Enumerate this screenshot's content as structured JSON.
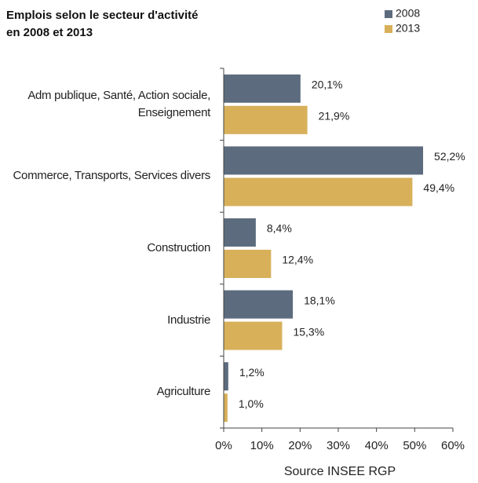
{
  "chart_data": {
    "type": "bar",
    "orientation": "horizontal",
    "title": [
      "Emplois selon le secteur d'activité",
      "en 2008 et 2013"
    ],
    "categories": [
      "Adm publique, Santé, Action sociale, Enseignement",
      "Commerce, Transports, Services divers",
      "Construction",
      "Industrie",
      "Agriculture"
    ],
    "series": [
      {
        "name": "2008",
        "color": "#5d6b7e",
        "values": [
          20.1,
          52.2,
          8.4,
          18.1,
          1.2
        ],
        "value_labels": [
          "20,1%",
          "52,2%",
          "8,4%",
          "18,1%",
          "1,2%"
        ]
      },
      {
        "name": "2013",
        "color": "#d8b05a",
        "values": [
          21.9,
          49.4,
          12.4,
          15.3,
          1.0
        ],
        "value_labels": [
          "21,9%",
          "49,4%",
          "12,4%",
          "15,3%",
          "1,0%"
        ]
      }
    ],
    "xlim": [
      0,
      60
    ],
    "xticks": [
      {
        "value": 0,
        "label": "0%"
      },
      {
        "value": 10,
        "label": "10%"
      },
      {
        "value": 20,
        "label": "20%"
      },
      {
        "value": 30,
        "label": "30%"
      },
      {
        "value": 40,
        "label": "40%"
      },
      {
        "value": 50,
        "label": "50%"
      },
      {
        "value": 60,
        "label": "60%"
      }
    ],
    "source": "Source INSEE RGP"
  }
}
